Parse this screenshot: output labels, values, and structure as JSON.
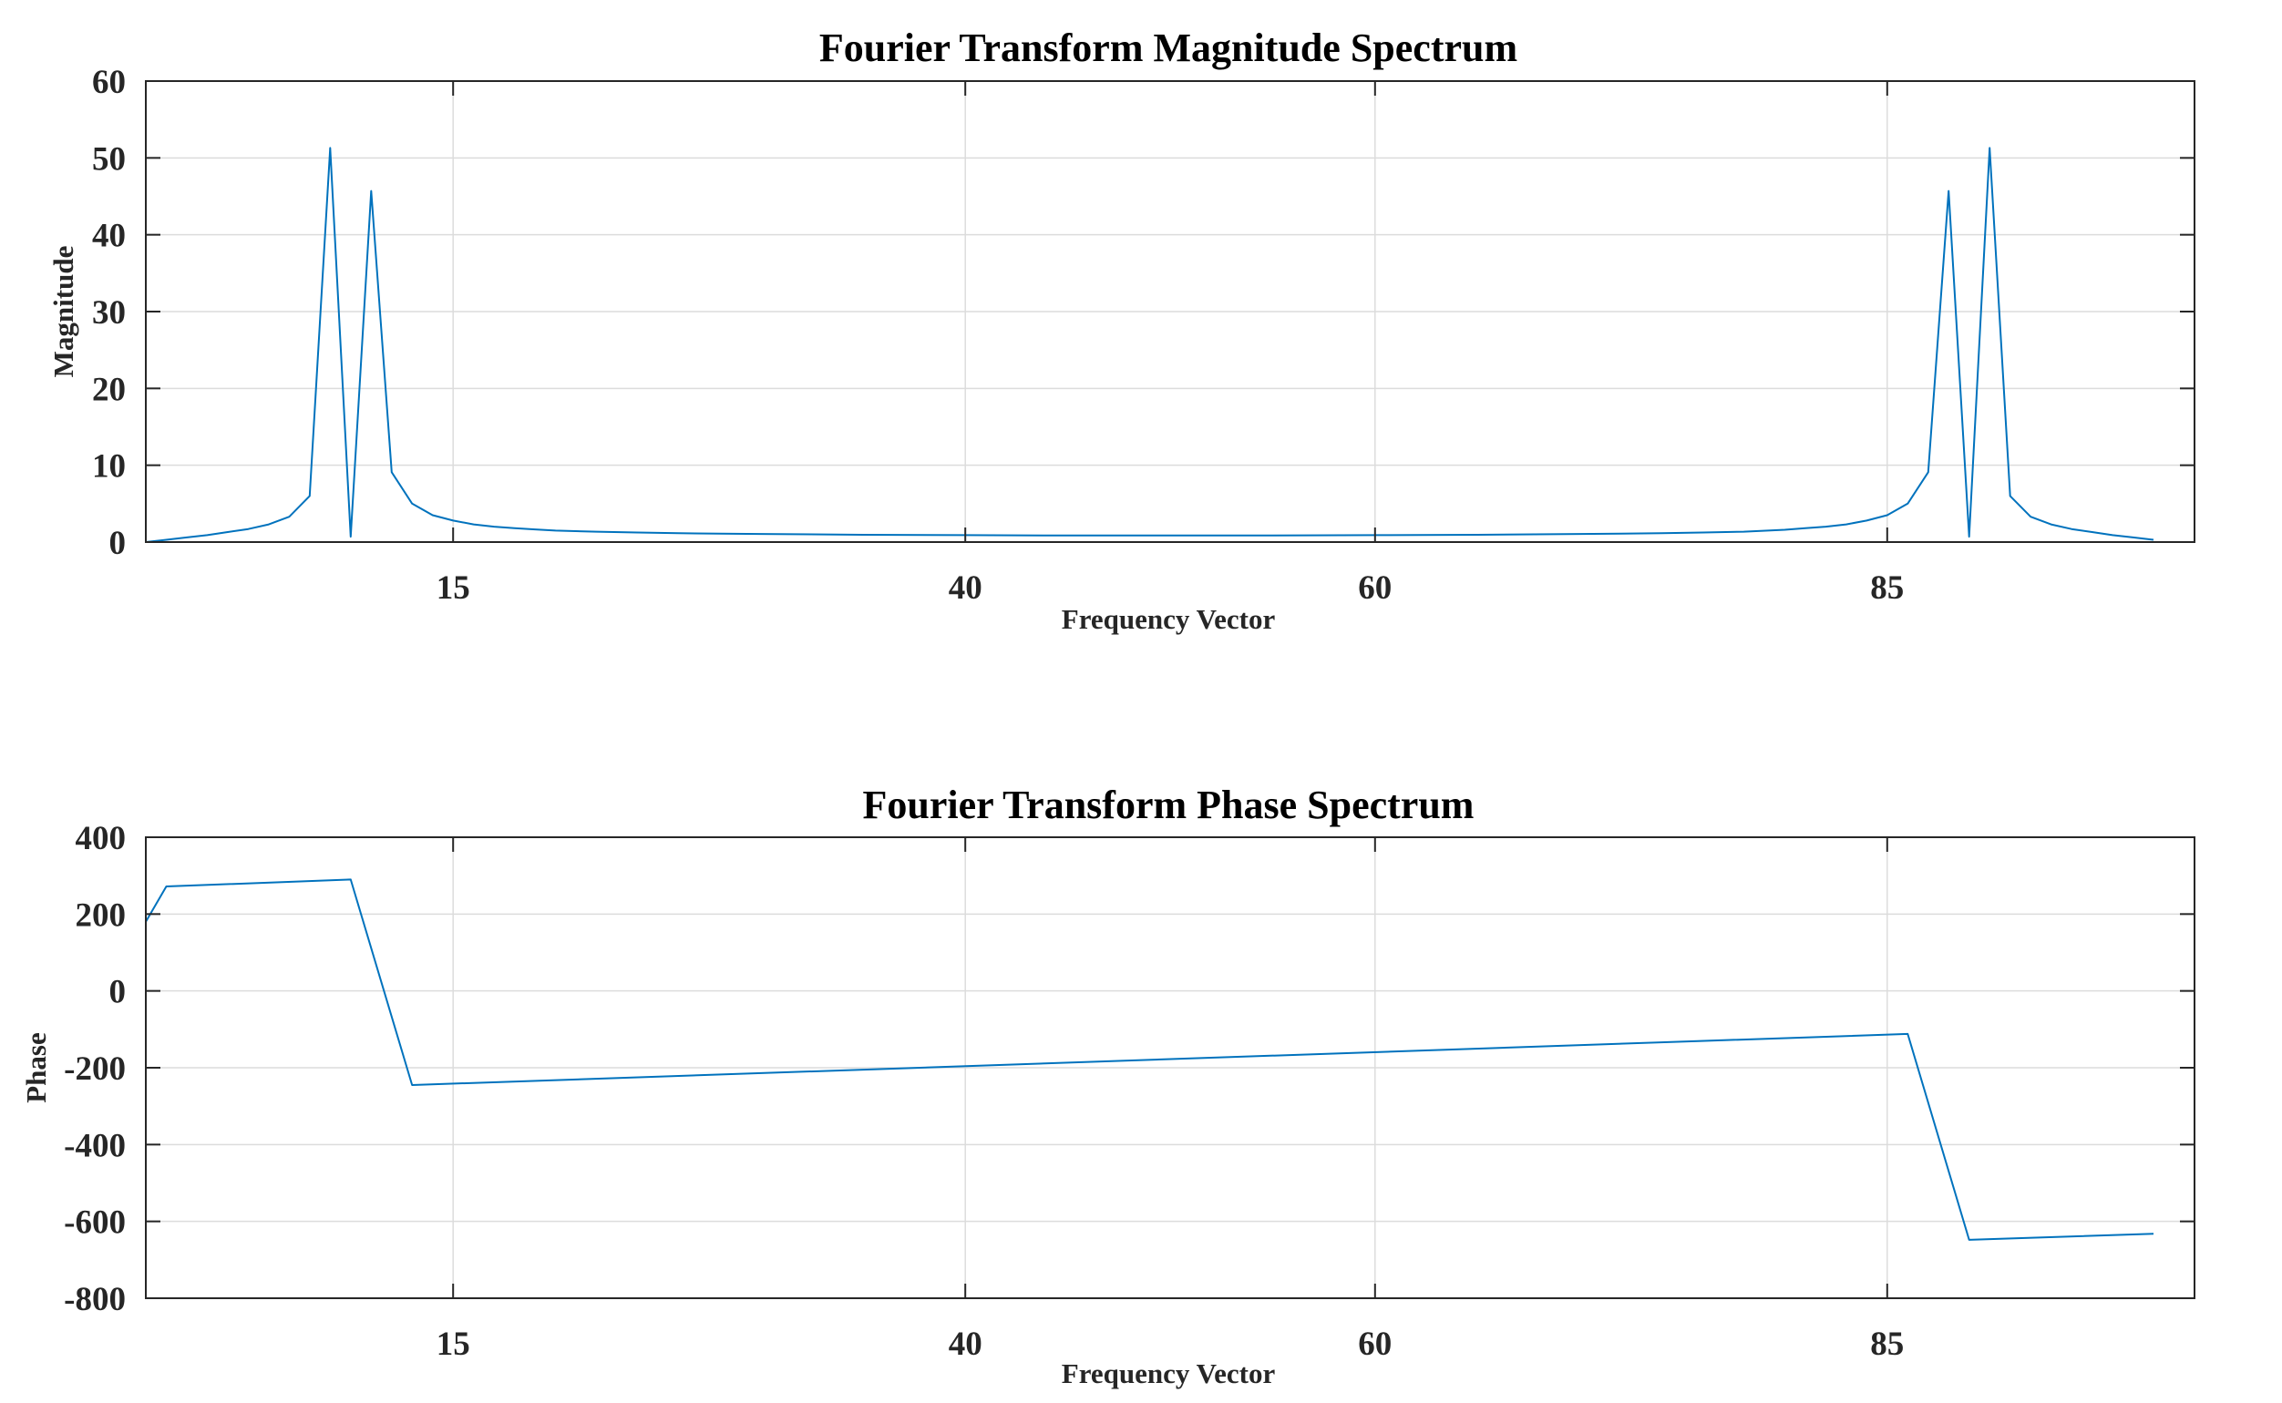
{
  "chart_data": [
    {
      "type": "line",
      "title": "Fourier Transform Magnitude Spectrum",
      "xlabel": "Frequency Vector",
      "ylabel": "Magnitude",
      "xlim": [
        0,
        100
      ],
      "ylim": [
        0,
        60
      ],
      "xticks": [
        15,
        40,
        60,
        85
      ],
      "yticks": [
        0,
        10,
        20,
        30,
        40,
        50,
        60
      ],
      "grid": true,
      "color": "#0072BD",
      "series": [
        {
          "x": [
            0,
            1,
            2,
            3,
            4,
            5,
            6,
            7,
            8,
            9,
            10,
            11,
            12,
            13,
            14,
            15,
            16,
            17,
            18,
            19,
            20,
            22,
            24,
            26,
            28,
            30,
            35,
            40,
            45,
            50,
            55,
            60,
            65,
            70,
            72,
            74,
            76,
            78,
            80,
            81,
            82,
            83,
            84,
            85,
            86,
            87,
            88,
            89,
            90,
            91,
            92,
            93,
            94,
            95,
            96,
            97,
            98
          ],
          "y": [
            0,
            0.3,
            0.6,
            0.9,
            1.3,
            1.7,
            2.3,
            3.3,
            6,
            51.3,
            0.7,
            45.7,
            9.1,
            5,
            3.5,
            2.8,
            2.3,
            2,
            1.8,
            1.65,
            1.5,
            1.35,
            1.25,
            1.15,
            1.1,
            1.05,
            0.95,
            0.9,
            0.85,
            0.85,
            0.85,
            0.9,
            0.95,
            1.05,
            1.1,
            1.15,
            1.25,
            1.35,
            1.6,
            1.8,
            2,
            2.3,
            2.8,
            3.5,
            5,
            9.1,
            45.7,
            0.7,
            51.3,
            6,
            3.3,
            2.3,
            1.7,
            1.3,
            0.9,
            0.6,
            0.3
          ]
        }
      ]
    },
    {
      "type": "line",
      "title": "Fourier Transform Phase Spectrum",
      "xlabel": "Frequency Vector",
      "ylabel": "Phase",
      "xlim": [
        0,
        100
      ],
      "ylim": [
        -800,
        400
      ],
      "xticks": [
        15,
        40,
        60,
        85
      ],
      "yticks": [
        400,
        200,
        0,
        -200,
        -400,
        -600,
        -800
      ],
      "grid": true,
      "color": "#0072BD",
      "series": [
        {
          "x": [
            0,
            1,
            10,
            13,
            86,
            89,
            98
          ],
          "y": [
            180,
            272,
            290,
            -245,
            -112,
            -648,
            -632
          ]
        }
      ]
    }
  ]
}
